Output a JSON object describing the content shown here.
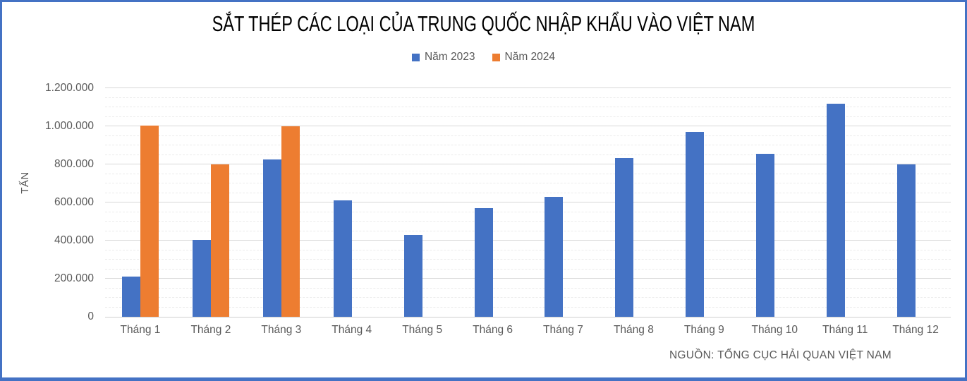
{
  "chart_data": {
    "type": "bar",
    "title": "SẮT THÉP CÁC LOẠI CỦA TRUNG QUỐC NHẬP KHẨU VÀO VIỆT NAM",
    "ylabel": "TẤN",
    "xlabel": "",
    "source": "NGUỒN: TỔNG CỤC HẢI QUAN VIỆT NAM",
    "categories": [
      "Tháng 1",
      "Tháng 2",
      "Tháng 3",
      "Tháng 4",
      "Tháng 5",
      "Tháng 6",
      "Tháng 7",
      "Tháng 8",
      "Tháng 9",
      "Tháng 10",
      "Tháng 11",
      "Tháng 12"
    ],
    "series": [
      {
        "name": "Năm 2023",
        "color": "#4472C4",
        "values": [
          210000,
          405000,
          825000,
          610000,
          430000,
          570000,
          630000,
          835000,
          970000,
          855000,
          1120000,
          800000
        ]
      },
      {
        "name": "Năm 2024",
        "color": "#ED7D31",
        "values": [
          1005000,
          800000,
          1000000,
          null,
          null,
          null,
          null,
          null,
          null,
          null,
          null,
          null
        ]
      }
    ],
    "ylim": [
      0,
      1200000
    ],
    "ytick_step": 200000,
    "minor_tick_step": 50000,
    "ytick_labels": [
      "0",
      "200.000",
      "400.000",
      "600.000",
      "800.000",
      "1.000.000",
      "1.200.000"
    ],
    "legend_position": "top",
    "grid": "major-and-minor-horizontal"
  },
  "colors": {
    "frame_border": "#4472C4",
    "axis_text": "#595959",
    "grid_major": "#D8D8D8",
    "grid_minor": "#EBEBEB"
  }
}
